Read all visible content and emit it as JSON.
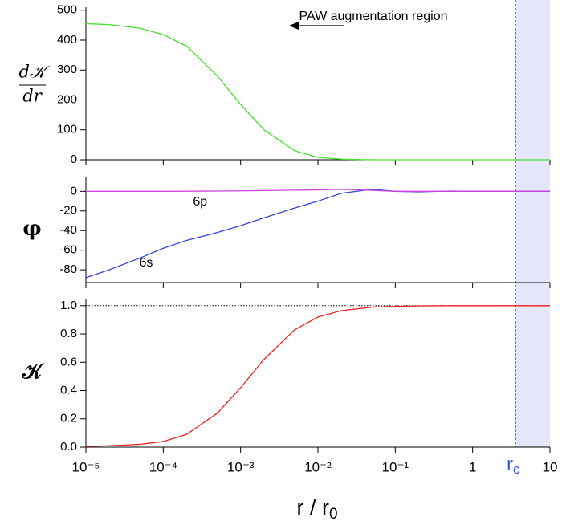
{
  "chart_data": [
    {
      "type": "line",
      "ylabel": {
        "numerator": "d𝒦",
        "denominator": "dr"
      },
      "annotation": "PAW augmentation region",
      "x": [
        1e-05,
        2e-05,
        5e-05,
        0.0001,
        0.0002,
        0.0005,
        0.001,
        0.002,
        0.005,
        0.01,
        0.02,
        0.05,
        0.1,
        0.2,
        0.5,
        1,
        2,
        5,
        10
      ],
      "series": [
        {
          "name": null,
          "color": "#44e02a",
          "values": [
            455,
            452,
            440,
            418,
            380,
            280,
            185,
            100,
            30,
            8,
            2,
            0,
            0,
            0,
            0,
            0,
            0,
            0,
            0
          ]
        }
      ],
      "ylim": [
        0,
        510
      ],
      "yticks": [
        0,
        100,
        200,
        300,
        400,
        500
      ]
    },
    {
      "type": "line",
      "ylabel": "φ",
      "x": [
        1e-05,
        2e-05,
        5e-05,
        0.0001,
        0.0002,
        0.0005,
        0.001,
        0.002,
        0.005,
        0.01,
        0.02,
        0.05,
        0.1,
        0.2,
        0.5,
        1,
        2,
        5,
        10
      ],
      "series": [
        {
          "name": "6s",
          "color": "#3344dd",
          "label_at": [
            6e-05,
            -73
          ],
          "values": [
            -88,
            -80,
            -68,
            -58,
            -50,
            -42,
            -35,
            -27,
            -17,
            -10,
            -2,
            2,
            0,
            -0.5,
            0.3,
            0,
            0,
            0,
            0
          ]
        },
        {
          "name": "6p",
          "color": "#cc44dd",
          "label_at": [
            0.0003,
            -11
          ],
          "values": [
            0,
            0,
            0,
            0,
            0.1,
            0.3,
            0.5,
            0.8,
            1.2,
            1.5,
            2,
            1,
            0,
            0,
            0,
            0,
            0,
            0,
            0
          ]
        }
      ],
      "ylim": [
        -93,
        15
      ],
      "yticks": [
        0,
        -20,
        -40,
        -60,
        -80
      ]
    },
    {
      "type": "line",
      "ylabel": "𝒦",
      "x": [
        1e-05,
        2e-05,
        5e-05,
        0.0001,
        0.0002,
        0.0005,
        0.001,
        0.002,
        0.005,
        0.01,
        0.02,
        0.05,
        0.1,
        0.2,
        0.5,
        1,
        2,
        5,
        10
      ],
      "series": [
        {
          "name": null,
          "color": "#ee2222",
          "values": [
            0.005,
            0.01,
            0.02,
            0.04,
            0.09,
            0.24,
            0.42,
            0.62,
            0.83,
            0.92,
            0.965,
            0.99,
            0.995,
            0.998,
            1.0,
            1.0,
            1.0,
            1.0,
            1.0
          ]
        }
      ],
      "hline": 1.0,
      "ylim": [
        0,
        1.05
      ],
      "yticks": [
        {
          "value": 0,
          "label": "0.0"
        },
        {
          "value": 0.2,
          "label": "0.2"
        },
        {
          "value": 0.4,
          "label": "0.4"
        },
        {
          "value": 0.6,
          "label": "0.6"
        },
        {
          "value": 0.8,
          "label": "0.8"
        },
        {
          "value": 1.0,
          "label": "1.0"
        }
      ],
      "log_x": true,
      "xlim": [
        1e-05,
        10
      ],
      "xticks": [
        {
          "value": 1e-05,
          "label": "10⁻⁵"
        },
        {
          "value": 0.0001,
          "label": "10⁻⁴"
        },
        {
          "value": 0.001,
          "label": "10⁻³"
        },
        {
          "value": 0.01,
          "label": "10⁻²"
        },
        {
          "value": 0.1,
          "label": "10⁻¹"
        },
        1,
        10
      ],
      "xlabel": {
        "text": "r / r",
        "sub": "0"
      },
      "rc": {
        "value": 3.6,
        "label": "r",
        "sub": "c",
        "color": "#3355ee"
      },
      "region": {
        "from": 3.6,
        "to": 10,
        "color": "#e6e6fb"
      }
    }
  ]
}
